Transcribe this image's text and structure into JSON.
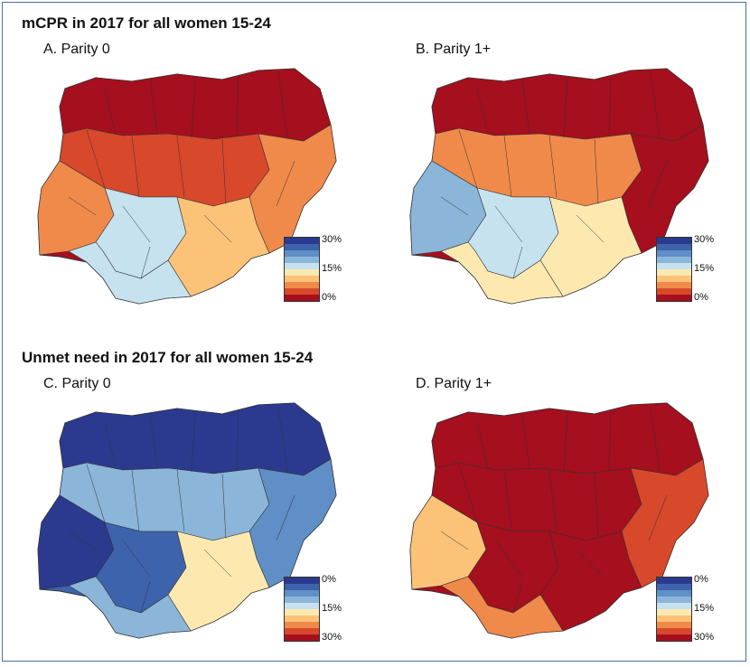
{
  "sections": {
    "mcpr_title": "mCPR in 2017 for all women 15-24",
    "unmet_title": "Unmet need in 2017 for all women 15-24"
  },
  "panels": {
    "a": "A.  Parity 0",
    "b": "B.  Parity 1+",
    "c": "C.  Parity 0",
    "d": "D.  Parity 1+"
  },
  "legend_mcpr": {
    "ticks": [
      "30%",
      "15%",
      "0%"
    ],
    "colors": [
      "#2b3a8f",
      "#3d63ad",
      "#5f8fc6",
      "#8bb6da",
      "#c6e2ef",
      "#fde9b0",
      "#fcc278",
      "#f08a4b",
      "#d8482b",
      "#a50f1e"
    ]
  },
  "legend_unmet": {
    "ticks": [
      "0%",
      "15%",
      "30%"
    ],
    "colors": [
      "#2b3a8f",
      "#3d63ad",
      "#5f8fc6",
      "#8bb6da",
      "#c6e2ef",
      "#fde9b0",
      "#fcc278",
      "#f08a4b",
      "#d8482b",
      "#a50f1e"
    ]
  },
  "map_colors": {
    "a": {
      "base": "#a50f1e",
      "north": "#a50f1e",
      "mid": "#d8482b",
      "sw": "#f08a4b",
      "south": "#c6e2ef",
      "se": "#fcc278",
      "east": "#f08a4b",
      "coast": "#c6e2ef"
    },
    "b": {
      "base": "#a50f1e",
      "north": "#a50f1e",
      "mid": "#f08a4b",
      "sw": "#8bb6da",
      "south": "#c6e2ef",
      "se": "#fde9b0",
      "east": "#a50f1e",
      "coast": "#fde9b0"
    },
    "c": {
      "base": "#3d63ad",
      "north": "#2b3a8f",
      "mid": "#8bb6da",
      "sw": "#2b3a8f",
      "south": "#3d63ad",
      "se": "#fde9b0",
      "east": "#5f8fc6",
      "coast": "#8bb6da"
    },
    "d": {
      "base": "#a50f1e",
      "north": "#a50f1e",
      "mid": "#a50f1e",
      "sw": "#fcc278",
      "south": "#a50f1e",
      "se": "#a50f1e",
      "east": "#d8482b",
      "coast": "#f08a4b"
    }
  }
}
